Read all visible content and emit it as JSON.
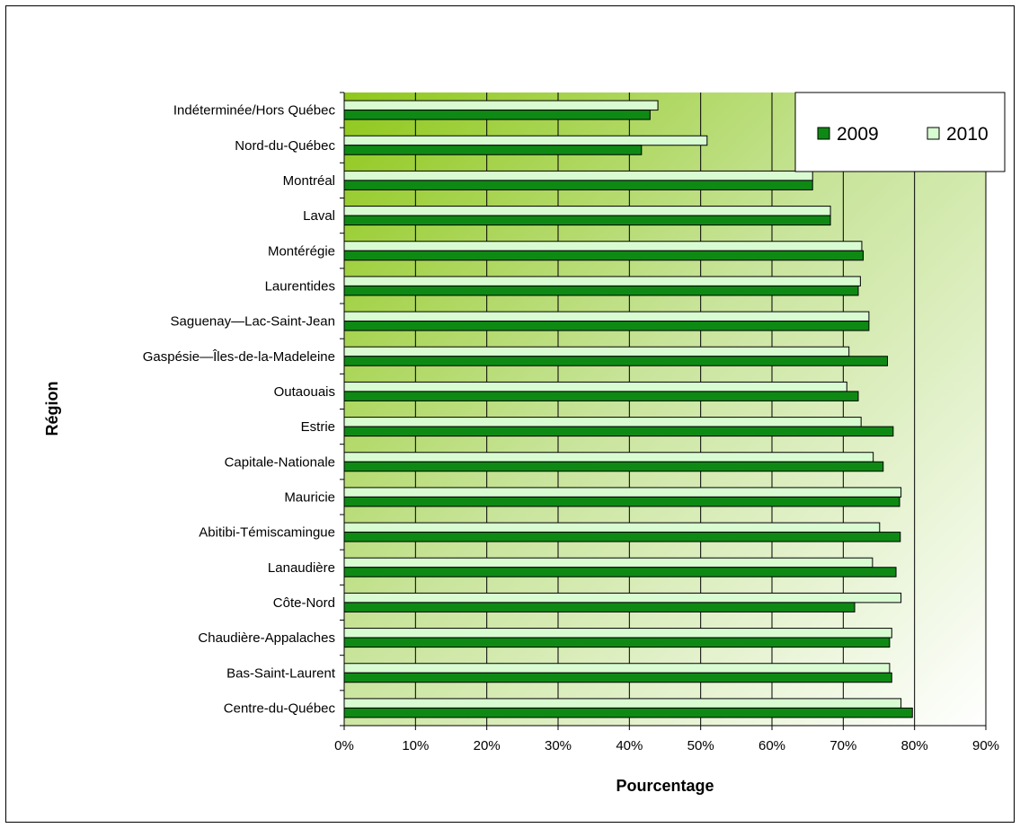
{
  "chart_data": {
    "type": "bar",
    "orientation": "horizontal",
    "xlabel": "Pourcentage",
    "ylabel": "Région",
    "xlim": [
      0,
      90
    ],
    "xticks": [
      "0%",
      "10%",
      "20%",
      "30%",
      "40%",
      "50%",
      "60%",
      "70%",
      "80%",
      "90%"
    ],
    "grid": "vertical",
    "legend_position": "top-right",
    "categories": [
      "Indéterminée/Hors Québec",
      "Nord-du-Québec",
      "Montréal",
      "Laval",
      "Montérégie",
      "Laurentides",
      "Saguenay—Lac-Saint-Jean",
      "Gaspésie—Îles-de-la-Madeleine",
      "Outaouais",
      "Estrie",
      "Capitale-Nationale",
      "Mauricie",
      "Abitibi-Témiscamingue",
      "Lanaudière",
      "Côte-Nord",
      "Chaudière-Appalaches",
      "Bas-Saint-Laurent",
      "Centre-du-Québec"
    ],
    "series": [
      {
        "name": "2009",
        "color": "#0e8a14",
        "values": [
          42.9,
          41.7,
          65.7,
          68.2,
          72.8,
          72.1,
          73.6,
          76.2,
          72.1,
          77.0,
          75.6,
          77.9,
          78.0,
          77.4,
          71.6,
          76.5,
          76.8,
          79.7
        ]
      },
      {
        "name": "2010",
        "color": "#d9fbd2",
        "values": [
          44.0,
          50.9,
          65.7,
          68.2,
          72.6,
          72.4,
          73.6,
          70.8,
          70.5,
          72.5,
          74.2,
          78.1,
          75.1,
          74.1,
          78.1,
          76.8,
          76.5,
          78.1
        ]
      }
    ]
  }
}
